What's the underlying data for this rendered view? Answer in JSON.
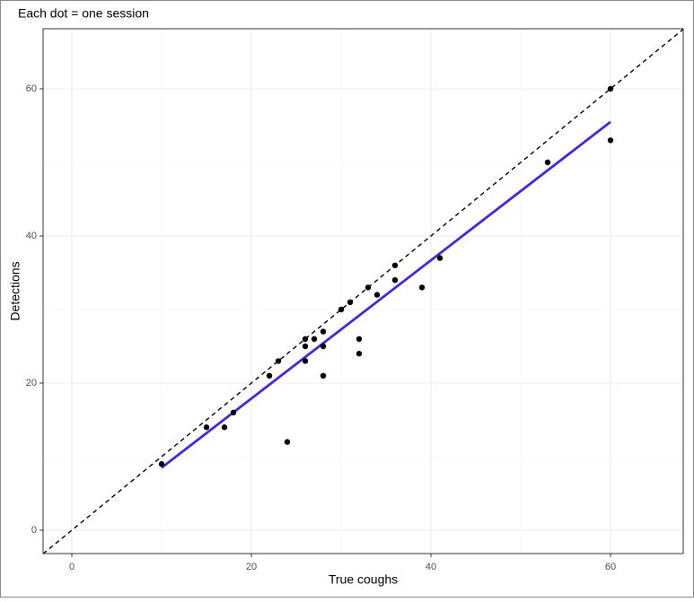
{
  "chart_data": {
    "type": "scatter",
    "title": "Each dot = one session",
    "xlabel": "True coughs",
    "ylabel": "Detections",
    "x": [
      10,
      15,
      17,
      18,
      22,
      23,
      24,
      26,
      26,
      26,
      27,
      28,
      28,
      28,
      30,
      31,
      32,
      32,
      33,
      34,
      36,
      36,
      39,
      41,
      53,
      60,
      60
    ],
    "values": [
      9,
      14,
      14,
      16,
      21,
      23,
      12,
      26,
      25,
      23,
      26,
      27,
      25,
      21,
      30,
      31,
      26,
      24,
      33,
      32,
      36,
      34,
      33,
      37,
      50,
      60,
      53
    ],
    "color": "#000000",
    "fit_line": {
      "x": [
        10,
        60
      ],
      "values": [
        8.5,
        55.5
      ],
      "color": "#4b22e0"
    },
    "reference_line": {
      "slope": 1,
      "intercept": 0,
      "color": "#000000",
      "dashed": true
    },
    "xlim": [
      -3.2,
      68.1
    ],
    "ylim": [
      -3.17,
      68.17
    ],
    "xticks": [
      0,
      20,
      40,
      60
    ],
    "yticks": [
      0,
      20,
      40,
      60
    ],
    "grid": true,
    "minor_grid": true
  }
}
